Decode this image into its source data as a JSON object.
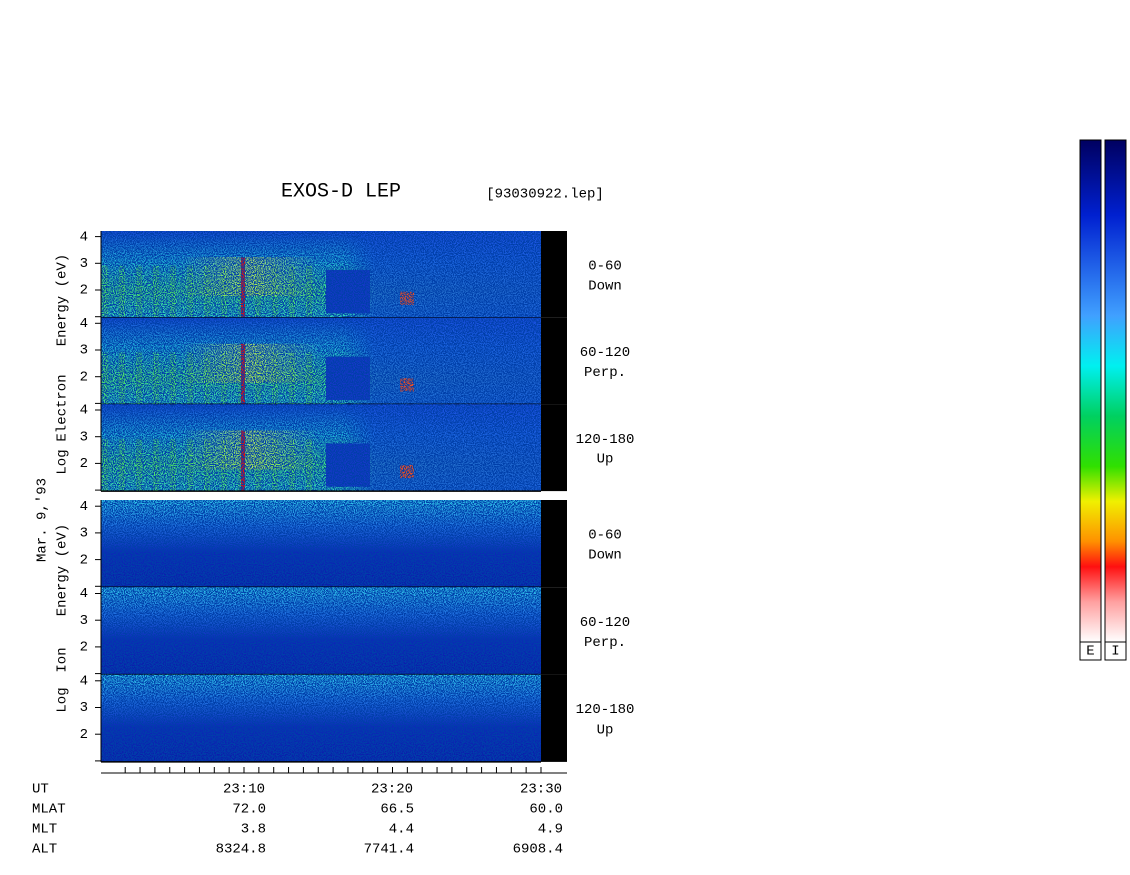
{
  "title": "EXOS-D LEP",
  "file": "[93030922.lep]",
  "date": "Mar. 9,'93",
  "groups": [
    {
      "ylabel": [
        "Log",
        "Electron",
        "Energy (eV)"
      ],
      "panels": [
        {
          "range": "0-60",
          "dir": "Down",
          "yticks": [
            2,
            3,
            4
          ]
        },
        {
          "range": "60-120",
          "dir": "Perp.",
          "yticks": [
            2,
            3,
            4
          ]
        },
        {
          "range": "120-180",
          "dir": "Up",
          "yticks": [
            2,
            3,
            4
          ]
        }
      ]
    },
    {
      "ylabel": [
        "Log",
        "Ion",
        "Energy (eV)"
      ],
      "panels": [
        {
          "range": "0-60",
          "dir": "Down",
          "yticks": [
            2,
            3,
            4
          ]
        },
        {
          "range": "60-120",
          "dir": "Perp.",
          "yticks": [
            2,
            3,
            4
          ]
        },
        {
          "range": "120-180",
          "dir": "Up",
          "yticks": [
            2,
            3,
            4
          ]
        }
      ]
    }
  ],
  "table": {
    "row_labels": [
      "UT",
      "MLAT",
      "MLT",
      "ALT"
    ],
    "columns": [
      [
        "23:10",
        "72.0",
        "3.8",
        "8324.8"
      ],
      [
        "23:20",
        "66.5",
        "4.4",
        "7741.4"
      ],
      [
        "23:30",
        "60.0",
        "4.9",
        "6908.4"
      ]
    ]
  },
  "colorbars": [
    "E",
    "I"
  ]
}
